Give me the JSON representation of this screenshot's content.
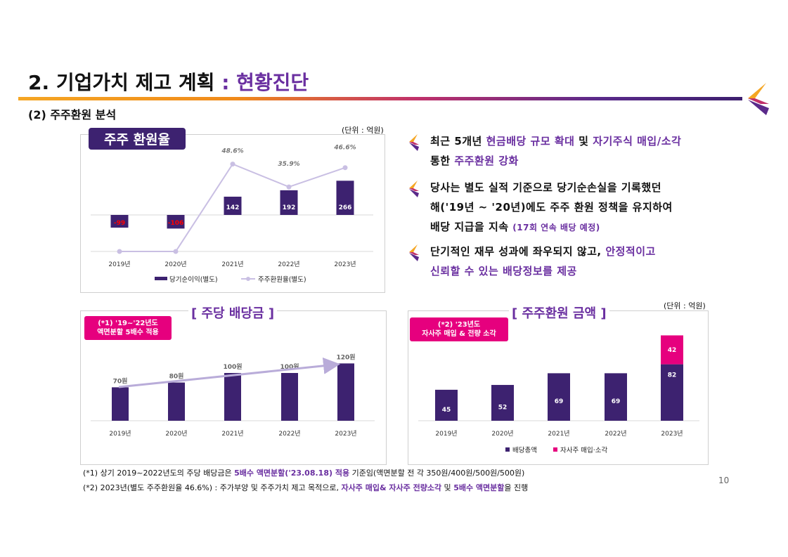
{
  "header": {
    "title_main": "2. 기업가치 제고 계획",
    "title_accent": ": 현황진단",
    "subtitle": "(2) 주주환원 분석"
  },
  "unit_label": "(단위 : 억원)",
  "colors": {
    "purple": "#3d2270",
    "light_line": "#c9bfe3",
    "pink": "#e6007e",
    "accent": "#6a2fa0"
  },
  "bullets": [
    {
      "icon": "bullet-chevron-icon",
      "line1_a": "최근 5개년 ",
      "line1_b": "현금배당 규모 확대",
      "line1_c": " 및 ",
      "line1_d": "자기주식 매입/소각",
      "line2_a": "통한 ",
      "line2_b": "주주환원 강화"
    },
    {
      "icon": "bullet-chevron-icon",
      "line1": "당사는 별도 실적 기준으로 당기순손실을 기록했던",
      "line2": "해('19년 ~ '20년)에도 주주 환원 정책을 유지하여",
      "line3_a": "배당 지급을 지속 ",
      "line3_b": "(17회 연속 배당 예정)"
    },
    {
      "icon": "bullet-chevron-icon",
      "line1_a": "단기적인 재무 성과에 좌우되지 않고, ",
      "line1_b": "안정적이고",
      "line2": "신뢰할 수 있는 배당정보를 제공"
    }
  ],
  "chart_data": [
    {
      "type": "bar",
      "title": "주주 환원율",
      "categories": [
        "2019년",
        "2020년",
        "2021년",
        "2022년",
        "2023년"
      ],
      "series": [
        {
          "name": "당기순이익(별도)",
          "type": "bar",
          "values": [
            -99,
            -106,
            142,
            192,
            266
          ],
          "labels": [
            "-99",
            "-106",
            "142",
            "192",
            "266"
          ]
        },
        {
          "name": "주주환원율(별도)",
          "type": "line",
          "values": [
            0,
            0,
            48.6,
            35.9,
            46.6
          ],
          "labels": [
            "",
            "",
            "48.6%",
            "35.9%",
            "46.6%"
          ]
        }
      ]
    },
    {
      "type": "bar",
      "title": "[ 주당 배당금 ]",
      "note": [
        "(*1) '19~'22년도",
        "액면분할 5배수 적용"
      ],
      "categories": [
        "2019년",
        "2020년",
        "2021년",
        "2022년",
        "2023년"
      ],
      "series": [
        {
          "name": "주당 배당금",
          "values": [
            70,
            80,
            100,
            100,
            120
          ],
          "labels": [
            "70원",
            "80원",
            "100원",
            "100원",
            "120원"
          ]
        }
      ]
    },
    {
      "type": "bar",
      "title": "[ 주주환원 금액 ]",
      "note": [
        "(*2) '23년도",
        "자사주 매입 & 전량 소각"
      ],
      "categories": [
        "2019년",
        "2020년",
        "2021년",
        "2022년",
        "2023년"
      ],
      "stacked": true,
      "series": [
        {
          "name": "배당총액",
          "values": [
            45,
            52,
            69,
            69,
            82
          ]
        },
        {
          "name": "자사주 매입·소각",
          "values": [
            0,
            0,
            0,
            0,
            42
          ]
        }
      ]
    }
  ],
  "footnotes": {
    "f1_a": "(*1)  상기 2019~2022년도의 주당 배당금은 ",
    "f1_b": "5배수 액면분할('23.08.18) 적용",
    "f1_c": " 기준임(액면분할 전 각 350원/400원/500원/500원)",
    "f2_a": "(*2)  2023년(별도 주주환원율 46.6%) : 주가부양 및 주주가치 제고 목적으로, ",
    "f2_b": "자사주 매입& 자사주 전량소각",
    "f2_c": " 및 ",
    "f2_d": "5배수 액면분할",
    "f2_e": "을 진행"
  },
  "page_number": "10"
}
